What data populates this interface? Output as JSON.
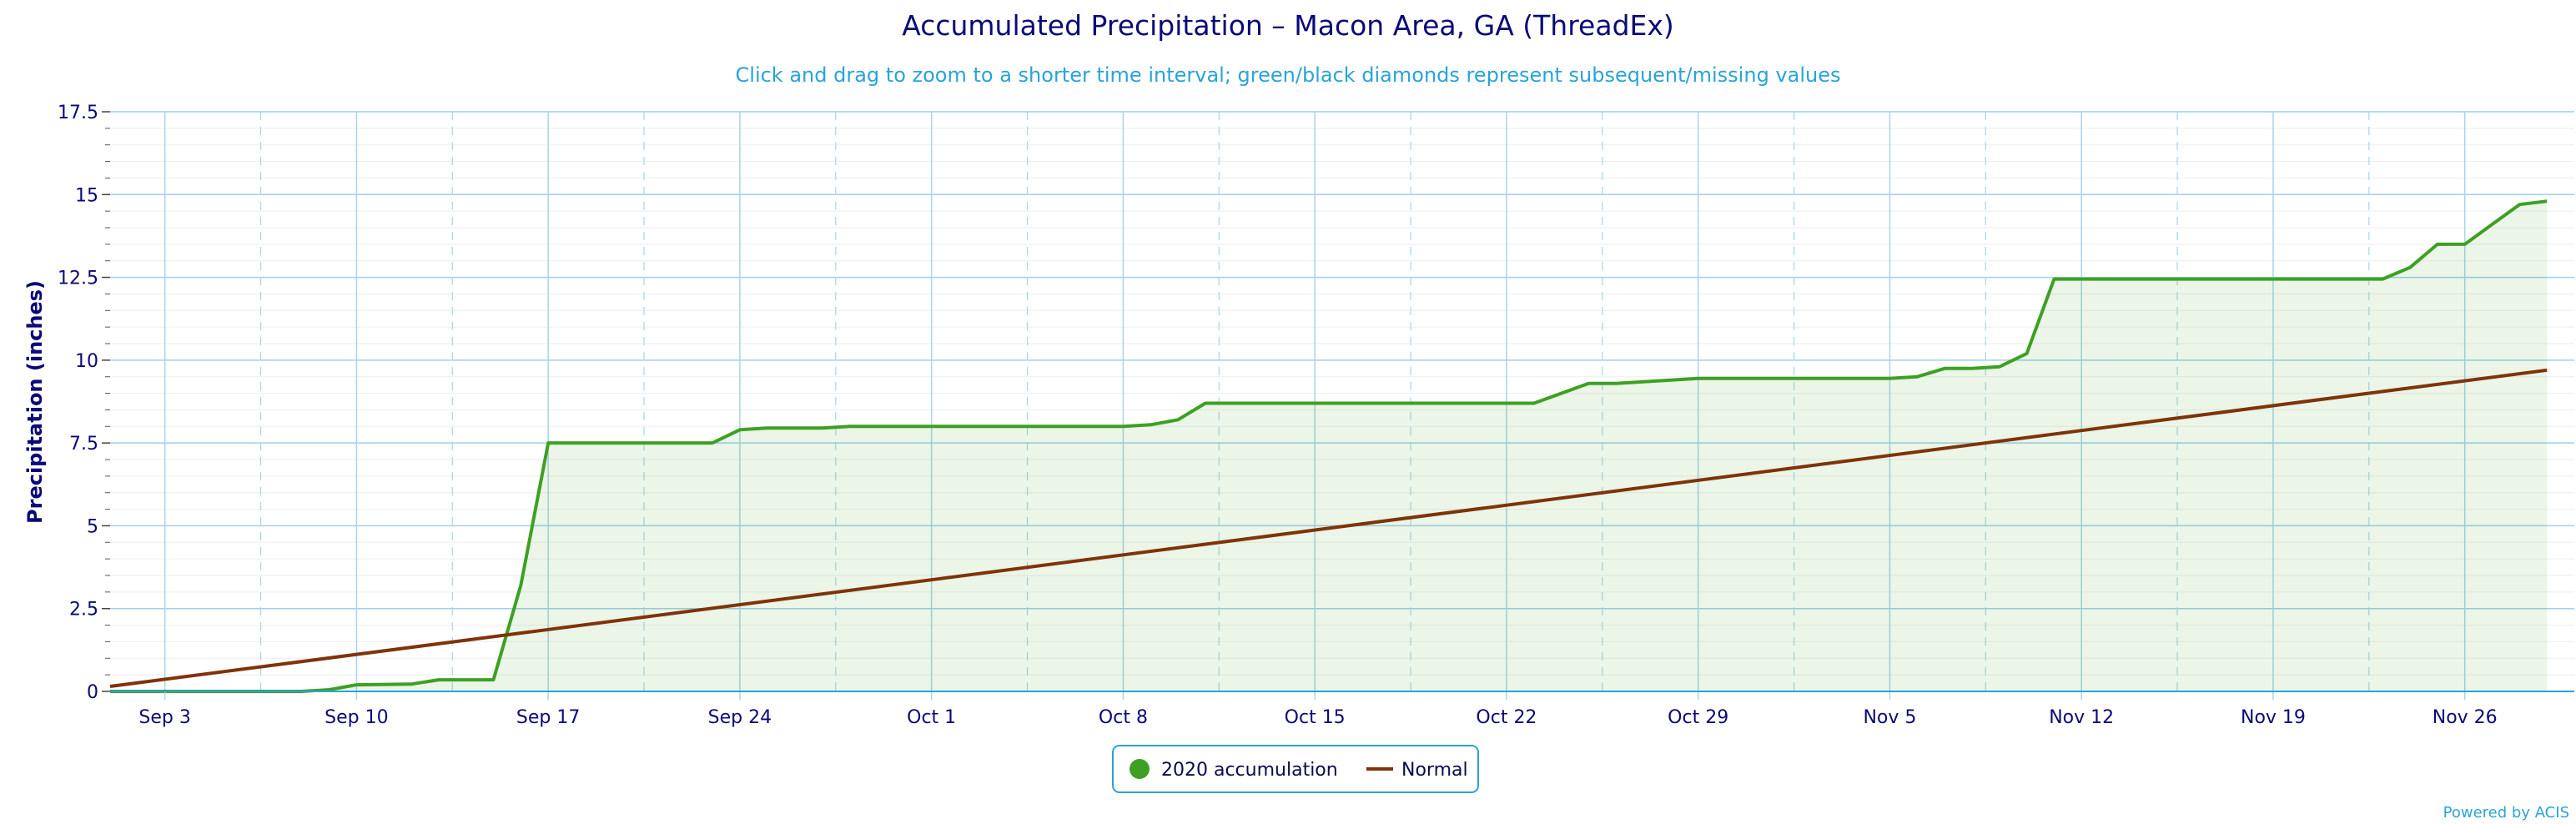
{
  "chart_data": {
    "type": "area",
    "title": "Accumulated Precipitation – Macon Area, GA (ThreadEx)",
    "subtitle": "Click and drag to zoom to a shorter time interval; green/black diamonds represent subsequent/missing values",
    "ylabel": "Precipitation (inches)",
    "xlabel": "",
    "ylim": [
      0,
      17.5
    ],
    "xlim": [
      "2020-09-01",
      "2020-11-30"
    ],
    "y_ticks": [
      "0",
      "2.5",
      "5",
      "7.5",
      "10",
      "12.5",
      "15",
      "17.5"
    ],
    "x_tick_dates": [
      "2020-09-03",
      "2020-09-10",
      "2020-09-17",
      "2020-09-24",
      "2020-10-01",
      "2020-10-08",
      "2020-10-15",
      "2020-10-22",
      "2020-10-29",
      "2020-11-05",
      "2020-11-12",
      "2020-11-19",
      "2020-11-26"
    ],
    "x_tick_labels": [
      "Sep 3",
      "Sep 10",
      "Sep 17",
      "Sep 24",
      "Oct 1",
      "Oct 8",
      "Oct 15",
      "Oct 22",
      "Oct 29",
      "Nov 5",
      "Nov 12",
      "Nov 19",
      "Nov 26"
    ],
    "grid": true,
    "legend_position": "bottom-center",
    "series": [
      {
        "name": "2020 accumulation",
        "color": "#3ea022",
        "fill": true,
        "points": [
          [
            "2020-09-01",
            0
          ],
          [
            "2020-09-08",
            0
          ],
          [
            "2020-09-09",
            0.05
          ],
          [
            "2020-09-10",
            0.2
          ],
          [
            "2020-09-12",
            0.22
          ],
          [
            "2020-09-13",
            0.35
          ],
          [
            "2020-09-15",
            0.35
          ],
          [
            "2020-09-16",
            3.2
          ],
          [
            "2020-09-17",
            7.5
          ],
          [
            "2020-09-23",
            7.5
          ],
          [
            "2020-09-24",
            7.9
          ],
          [
            "2020-09-25",
            7.95
          ],
          [
            "2020-09-27",
            7.95
          ],
          [
            "2020-09-28",
            8.0
          ],
          [
            "2020-10-08",
            8.0
          ],
          [
            "2020-10-09",
            8.05
          ],
          [
            "2020-10-10",
            8.2
          ],
          [
            "2020-10-11",
            8.7
          ],
          [
            "2020-10-23",
            8.7
          ],
          [
            "2020-10-24",
            9.0
          ],
          [
            "2020-10-25",
            9.3
          ],
          [
            "2020-10-26",
            9.3
          ],
          [
            "2020-10-27",
            9.35
          ],
          [
            "2020-10-28",
            9.4
          ],
          [
            "2020-10-29",
            9.45
          ],
          [
            "2020-11-05",
            9.45
          ],
          [
            "2020-11-06",
            9.5
          ],
          [
            "2020-11-07",
            9.75
          ],
          [
            "2020-11-08",
            9.75
          ],
          [
            "2020-11-09",
            9.8
          ],
          [
            "2020-11-10",
            10.2
          ],
          [
            "2020-11-11",
            12.45
          ],
          [
            "2020-11-23",
            12.45
          ],
          [
            "2020-11-24",
            12.8
          ],
          [
            "2020-11-25",
            13.5
          ],
          [
            "2020-11-26",
            13.5
          ],
          [
            "2020-11-27",
            14.1
          ],
          [
            "2020-11-28",
            14.7
          ],
          [
            "2020-11-29",
            14.8
          ]
        ]
      },
      {
        "name": "Normal",
        "color": "#7f3309",
        "fill": false,
        "points": [
          [
            "2020-09-01",
            0.15
          ],
          [
            "2020-11-29",
            9.7
          ]
        ]
      }
    ]
  },
  "legend": {
    "entries": [
      "2020 accumulation",
      "Normal"
    ]
  },
  "credit": "Powered by ACIS"
}
